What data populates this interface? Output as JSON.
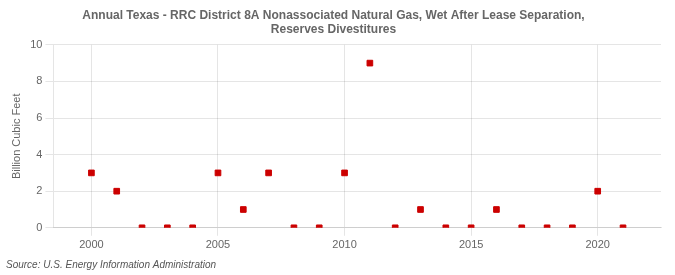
{
  "chart_data": {
    "type": "scatter",
    "title": "Annual Texas - RRC District 8A Nonassociated Natural Gas, Wet After Lease Separation,\nReserves Divestitures",
    "ylabel": "Billion Cubic Feet",
    "source": "Source: U.S. Energy Information Administration",
    "x": [
      2000,
      2001,
      2002,
      2003,
      2004,
      2005,
      2006,
      2007,
      2008,
      2009,
      2010,
      2011,
      2012,
      2013,
      2014,
      2015,
      2016,
      2017,
      2018,
      2019,
      2020,
      2021
    ],
    "values": [
      3.0,
      2.0,
      0.0,
      0.0,
      0.0,
      3.0,
      1.0,
      3.0,
      0.0,
      0.0,
      3.0,
      9.0,
      0.0,
      1.0,
      0.0,
      0.0,
      1.0,
      0.0,
      0.0,
      0.0,
      2.0,
      0.0
    ],
    "color": "#cc0000",
    "marker": "square",
    "xlim": [
      1998.5,
      2022.5
    ],
    "ylim": [
      0,
      10
    ],
    "xticks": [
      2000,
      2005,
      2010,
      2015,
      2020
    ],
    "yticks": [
      0,
      2,
      4,
      6,
      8,
      10
    ],
    "grid": true
  }
}
